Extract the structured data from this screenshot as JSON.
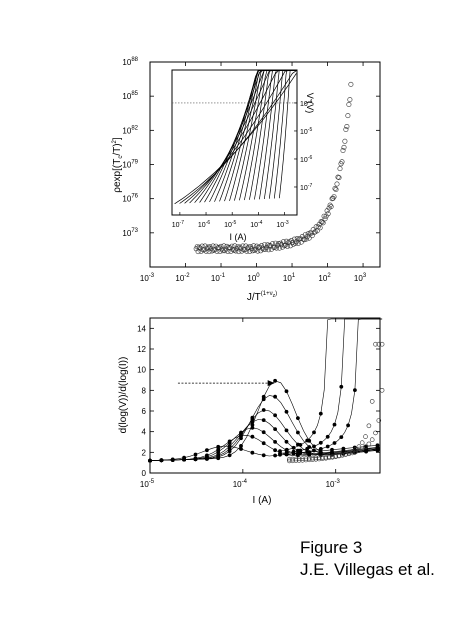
{
  "caption": {
    "line1": "Figure 3",
    "line2": "J.E. Villegas et al."
  },
  "chart_data": [
    {
      "type": "scatter",
      "id": "top",
      "xscale": "log",
      "yscale": "log",
      "xlim": [
        0.001,
        3000
      ],
      "ylim": [
        1e+70,
        1e+88
      ],
      "xticks": [
        {
          "v": 0.001,
          "b": "10",
          "e": "-3"
        },
        {
          "v": 0.01,
          "b": "10",
          "e": "-2"
        },
        {
          "v": 0.1,
          "b": "10",
          "e": "-1"
        },
        {
          "v": 1,
          "b": "10",
          "e": "0"
        },
        {
          "v": 10,
          "b": "10",
          "e": "1"
        },
        {
          "v": 100,
          "b": "10",
          "e": "2"
        },
        {
          "v": 1000,
          "b": "10",
          "e": "3"
        }
      ],
      "yticks": [
        {
          "v": 1e+73,
          "b": "10",
          "e": "73"
        },
        {
          "v": 1e+76,
          "b": "10",
          "e": "76"
        },
        {
          "v": 1e+79,
          "b": "10",
          "e": "79"
        },
        {
          "v": 1e+82,
          "b": "10",
          "e": "82"
        },
        {
          "v": 1e+85,
          "b": "10",
          "e": "85"
        },
        {
          "v": 1e+88,
          "b": "10",
          "e": "88"
        }
      ],
      "xlabel": "J/T",
      "xlabel_sup": "(1+ν",
      "xlabel_sub": "z",
      "xlabel_end": ")",
      "ylabel": "ρexp[(T",
      "ylabel_sub1": "c",
      "ylabel_mid": "/T)",
      "ylabel_sup": "2",
      "ylabel_end": "]",
      "marker": "open-circle"
    },
    {
      "type": "line",
      "id": "inset",
      "xscale": "log",
      "yscale": "log",
      "xlim": [
        5e-08,
        0.003
      ],
      "ylim": [
        1e-08,
        0.0015
      ],
      "xticks": [
        {
          "v": 1e-07,
          "b": "10",
          "e": "-7"
        },
        {
          "v": 1e-06,
          "b": "10",
          "e": "-6"
        },
        {
          "v": 1e-05,
          "b": "10",
          "e": "-5"
        },
        {
          "v": 0.0001,
          "b": "10",
          "e": "-4"
        },
        {
          "v": 0.001,
          "b": "10",
          "e": "-3"
        }
      ],
      "yticks": [
        {
          "v": 1e-07,
          "b": "10",
          "e": "-7"
        },
        {
          "v": 1e-06,
          "b": "10",
          "e": "-6"
        },
        {
          "v": 1e-05,
          "b": "10",
          "e": "-5"
        },
        {
          "v": 0.0001,
          "b": "10",
          "e": "-4"
        }
      ],
      "xlabel": "I (A)",
      "ylabel": "V (V)",
      "reference_line_y": 0.0001
    },
    {
      "type": "line",
      "id": "bottom",
      "xscale": "log",
      "yscale": "linear",
      "xlim": [
        1e-05,
        0.003
      ],
      "ylim": [
        0,
        15
      ],
      "xticks": [
        {
          "v": 1e-05,
          "b": "10",
          "e": "-5"
        },
        {
          "v": 0.0001,
          "b": "10",
          "e": "-4"
        },
        {
          "v": 0.001,
          "b": "10",
          "e": "-3"
        }
      ],
      "yticks": [
        {
          "v": 0,
          "t": "0"
        },
        {
          "v": 2,
          "t": "2"
        },
        {
          "v": 4,
          "t": "4"
        },
        {
          "v": 6,
          "t": "6"
        },
        {
          "v": 8,
          "t": "8"
        },
        {
          "v": 10,
          "t": "10"
        },
        {
          "v": 12,
          "t": "12"
        },
        {
          "v": 14,
          "t": "14"
        }
      ],
      "xlabel": "I (A)",
      "ylabel": "d(log(V))/d(log(I))",
      "arrow": {
        "from": [
          2e-05,
          8.7
        ],
        "to": [
          0.00022,
          8.7
        ]
      },
      "markers": [
        "filled-circle",
        "open-circle"
      ]
    }
  ]
}
